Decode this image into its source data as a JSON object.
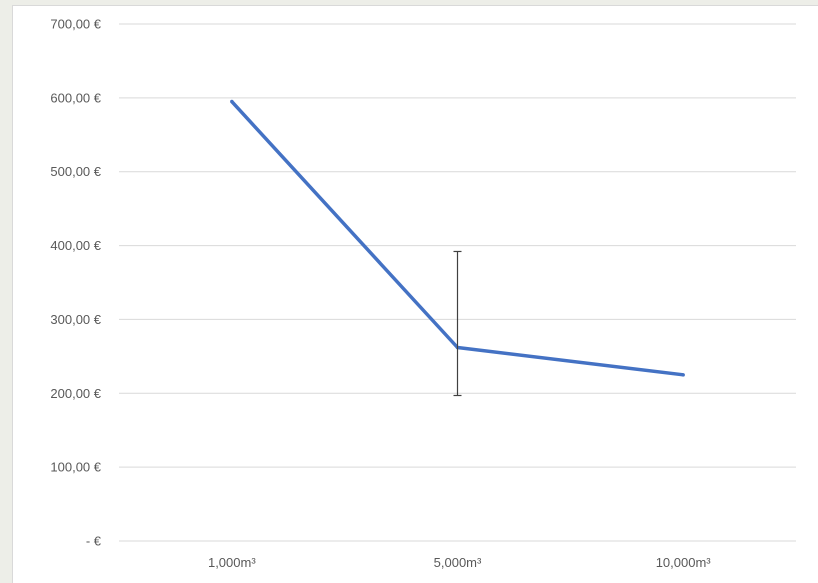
{
  "chart_data": {
    "type": "line",
    "categories": [
      "1,000m³",
      "5,000m³",
      "10,000m³"
    ],
    "series": [
      {
        "values": [
          595,
          262,
          225
        ],
        "color": "#4472c4"
      }
    ],
    "error_bars": [
      {
        "category": "5,000m³",
        "low": 197,
        "high": 392
      }
    ],
    "ylim": [
      0,
      700
    ],
    "y_ticks": [
      700,
      600,
      500,
      400,
      300,
      200,
      100,
      0
    ],
    "y_tick_labels": [
      "700,00 €",
      "600,00 €",
      "500,00 €",
      "400,00 €",
      "300,00 €",
      "200,00 €",
      "100,00 €",
      "-   €"
    ],
    "grid": true,
    "gridline_color": "#d9d9d9",
    "error_bar_color": "#404040",
    "title": "",
    "xlabel": "",
    "ylabel": ""
  }
}
